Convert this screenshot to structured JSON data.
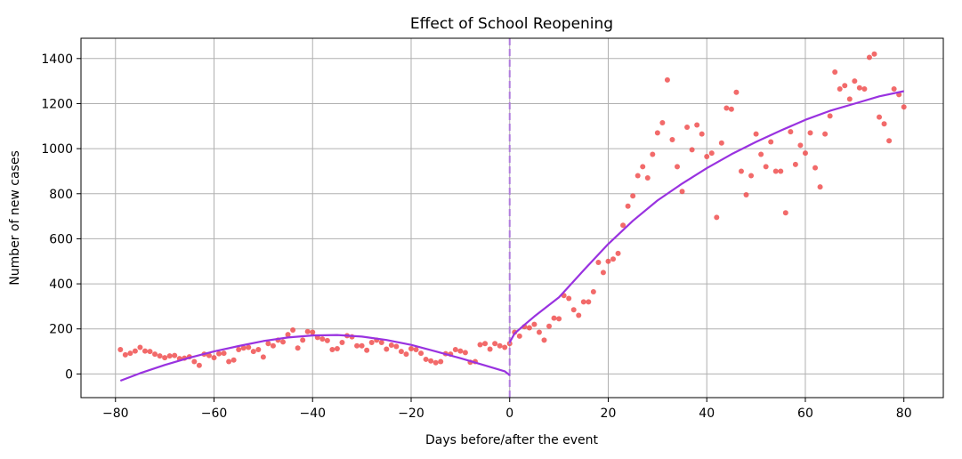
{
  "chart_data": {
    "type": "scatter",
    "title": "Effect of School Reopening",
    "xlabel": "Days before/after the event",
    "ylabel": "Number of new cases",
    "xlim": [
      -87,
      88
    ],
    "ylim": [
      -105,
      1490
    ],
    "xticks": [
      -80,
      -60,
      -40,
      -20,
      0,
      20,
      40,
      60,
      80
    ],
    "xtick_labels": [
      "−80",
      "−60",
      "−40",
      "−20",
      "0",
      "20",
      "40",
      "60",
      "80"
    ],
    "yticks": [
      0,
      200,
      400,
      600,
      800,
      1000,
      1200,
      1400
    ],
    "ytick_labels": [
      "0",
      "200",
      "400",
      "600",
      "800",
      "1000",
      "1200",
      "1400"
    ],
    "grid": true,
    "event_line_x": 0,
    "colors": {
      "points": "#f05050",
      "fit": "#9932e0",
      "event_line": "#b07cdc",
      "grid": "#b0b0b0"
    },
    "series": [
      {
        "kind": "scatter",
        "points": [
          [
            -79,
            108
          ],
          [
            -78,
            85
          ],
          [
            -77,
            92
          ],
          [
            -76,
            102
          ],
          [
            -75,
            118
          ],
          [
            -74,
            102
          ],
          [
            -73,
            100
          ],
          [
            -72,
            88
          ],
          [
            -71,
            80
          ],
          [
            -70,
            72
          ],
          [
            -69,
            80
          ],
          [
            -68,
            82
          ],
          [
            -67,
            68
          ],
          [
            -66,
            70
          ],
          [
            -65,
            76
          ],
          [
            -64,
            55
          ],
          [
            -63,
            38
          ],
          [
            -62,
            88
          ],
          [
            -61,
            82
          ],
          [
            -60,
            72
          ],
          [
            -59,
            90
          ],
          [
            -58,
            92
          ],
          [
            -57,
            55
          ],
          [
            -56,
            62
          ],
          [
            -55,
            108
          ],
          [
            -54,
            115
          ],
          [
            -53,
            118
          ],
          [
            -52,
            100
          ],
          [
            -51,
            108
          ],
          [
            -50,
            75
          ],
          [
            -49,
            135
          ],
          [
            -48,
            125
          ],
          [
            -47,
            150
          ],
          [
            -46,
            142
          ],
          [
            -45,
            175
          ],
          [
            -44,
            195
          ],
          [
            -43,
            115
          ],
          [
            -42,
            150
          ],
          [
            -41,
            188
          ],
          [
            -40,
            185
          ],
          [
            -39,
            162
          ],
          [
            -38,
            155
          ],
          [
            -37,
            148
          ],
          [
            -36,
            108
          ],
          [
            -35,
            112
          ],
          [
            -34,
            140
          ],
          [
            -33,
            170
          ],
          [
            -32,
            165
          ],
          [
            -31,
            125
          ],
          [
            -30,
            125
          ],
          [
            -29,
            105
          ],
          [
            -28,
            140
          ],
          [
            -27,
            150
          ],
          [
            -26,
            140
          ],
          [
            -25,
            110
          ],
          [
            -24,
            128
          ],
          [
            -23,
            122
          ],
          [
            -22,
            100
          ],
          [
            -21,
            88
          ],
          [
            -20,
            112
          ],
          [
            -19,
            108
          ],
          [
            -18,
            92
          ],
          [
            -17,
            65
          ],
          [
            -16,
            58
          ],
          [
            -15,
            50
          ],
          [
            -14,
            55
          ],
          [
            -13,
            90
          ],
          [
            -12,
            88
          ],
          [
            -11,
            108
          ],
          [
            -10,
            102
          ],
          [
            -9,
            95
          ],
          [
            -8,
            52
          ],
          [
            -7,
            55
          ],
          [
            -6,
            130
          ],
          [
            -5,
            135
          ],
          [
            -4,
            110
          ],
          [
            -3,
            135
          ],
          [
            -2,
            125
          ],
          [
            -1,
            118
          ],
          [
            0,
            135
          ],
          [
            1,
            185
          ],
          [
            2,
            168
          ],
          [
            3,
            210
          ],
          [
            4,
            205
          ],
          [
            5,
            220
          ],
          [
            6,
            185
          ],
          [
            7,
            150
          ],
          [
            8,
            212
          ],
          [
            9,
            248
          ],
          [
            10,
            245
          ],
          [
            11,
            348
          ],
          [
            12,
            335
          ],
          [
            13,
            285
          ],
          [
            14,
            260
          ],
          [
            15,
            320
          ],
          [
            16,
            320
          ],
          [
            17,
            365
          ],
          [
            18,
            495
          ],
          [
            19,
            450
          ],
          [
            20,
            500
          ],
          [
            21,
            510
          ],
          [
            22,
            535
          ],
          [
            23,
            660
          ],
          [
            24,
            745
          ],
          [
            25,
            790
          ],
          [
            26,
            880
          ],
          [
            27,
            920
          ],
          [
            28,
            870
          ],
          [
            29,
            975
          ],
          [
            30,
            1070
          ],
          [
            31,
            1115
          ],
          [
            32,
            1305
          ],
          [
            33,
            1040
          ],
          [
            34,
            920
          ],
          [
            35,
            810
          ],
          [
            36,
            1095
          ],
          [
            37,
            995
          ],
          [
            38,
            1105
          ],
          [
            39,
            1065
          ],
          [
            40,
            965
          ],
          [
            41,
            980
          ],
          [
            42,
            695
          ],
          [
            43,
            1025
          ],
          [
            44,
            1180
          ],
          [
            45,
            1175
          ],
          [
            46,
            1250
          ],
          [
            47,
            900
          ],
          [
            48,
            795
          ],
          [
            49,
            880
          ],
          [
            50,
            1065
          ],
          [
            51,
            975
          ],
          [
            52,
            920
          ],
          [
            53,
            1030
          ],
          [
            54,
            900
          ],
          [
            55,
            900
          ],
          [
            56,
            715
          ],
          [
            57,
            1075
          ],
          [
            58,
            930
          ],
          [
            59,
            1015
          ],
          [
            60,
            980
          ],
          [
            61,
            1070
          ],
          [
            62,
            915
          ],
          [
            63,
            830
          ],
          [
            64,
            1065
          ],
          [
            65,
            1145
          ],
          [
            66,
            1340
          ],
          [
            67,
            1265
          ],
          [
            68,
            1280
          ],
          [
            69,
            1220
          ],
          [
            70,
            1300
          ],
          [
            71,
            1270
          ],
          [
            72,
            1265
          ],
          [
            73,
            1405
          ],
          [
            74,
            1420
          ],
          [
            75,
            1140
          ],
          [
            76,
            1110
          ],
          [
            77,
            1035
          ],
          [
            78,
            1265
          ],
          [
            79,
            1240
          ],
          [
            80,
            1185
          ]
        ]
      },
      {
        "kind": "fit-before",
        "x": [
          -79,
          -75,
          -70,
          -65,
          -60,
          -55,
          -50,
          -45,
          -40,
          -35,
          -30,
          -25,
          -20,
          -15,
          -10,
          -5,
          -1,
          0
        ],
        "y": [
          -30,
          3,
          40,
          72,
          100,
          124,
          146,
          162,
          171,
          173,
          166,
          151,
          129,
          100,
          70,
          38,
          12,
          -5
        ]
      },
      {
        "kind": "fit-after",
        "x": [
          0,
          1,
          3,
          5,
          10,
          15,
          20,
          25,
          30,
          35,
          40,
          45,
          50,
          55,
          60,
          65,
          70,
          75,
          80
        ],
        "y": [
          140,
          180,
          218,
          255,
          340,
          460,
          577,
          680,
          770,
          845,
          913,
          975,
          1030,
          1080,
          1128,
          1168,
          1200,
          1232,
          1255
        ]
      }
    ]
  }
}
